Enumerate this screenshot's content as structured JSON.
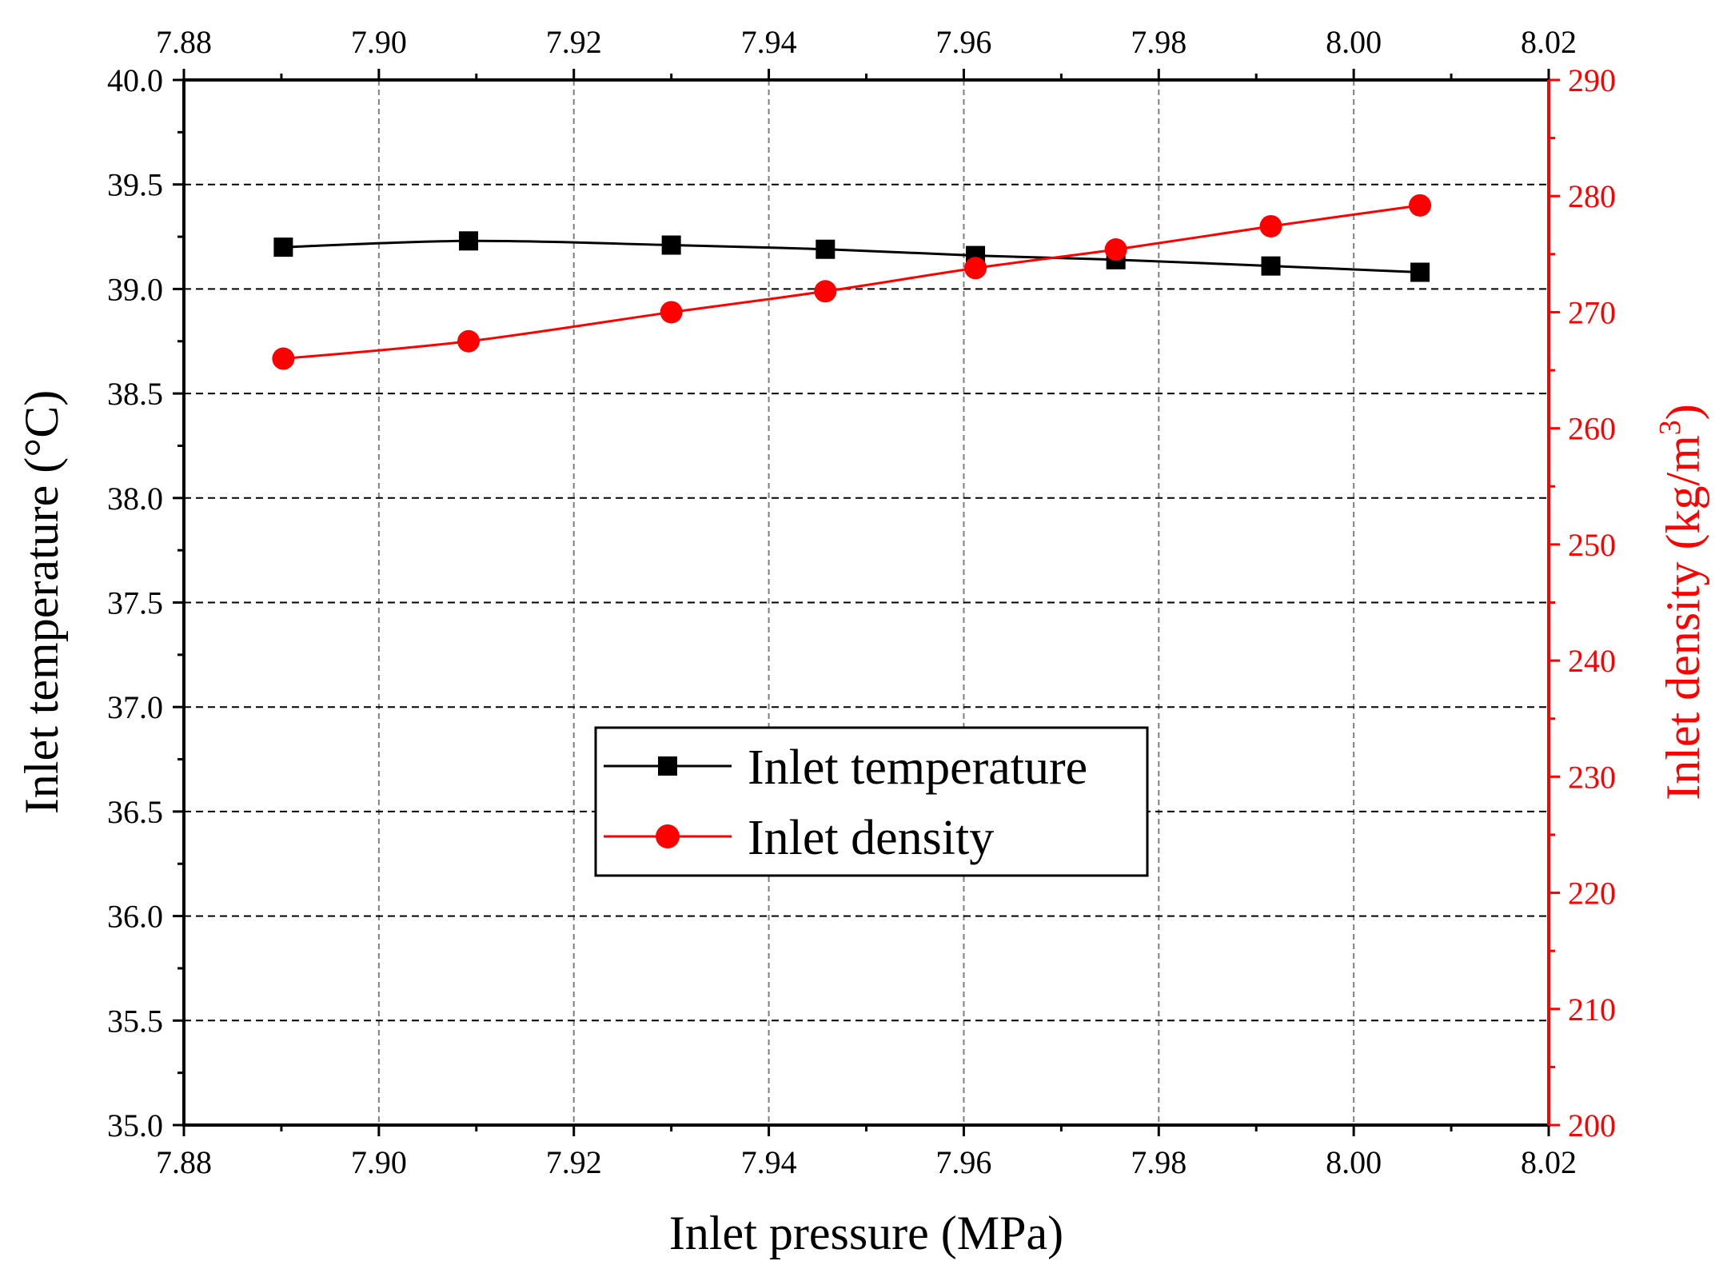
{
  "chart_data": {
    "type": "line",
    "title": "",
    "xlabel": "Inlet pressure (MPa)",
    "ylabel_left": "Inlet temperature (°C)",
    "ylabel_right_prefix": "Inlet density (kg/m",
    "ylabel_right_superscript": "3",
    "ylabel_right_suffix": ")",
    "xlim": [
      7.88,
      8.02
    ],
    "ylim_left": [
      35.0,
      40.0
    ],
    "ylim_right": [
      200,
      290
    ],
    "x_ticks": [
      "7.88",
      "7.90",
      "7.92",
      "7.94",
      "7.96",
      "7.98",
      "8.00",
      "8.02"
    ],
    "x_tick_values": [
      7.88,
      7.9,
      7.92,
      7.94,
      7.96,
      7.98,
      8.0,
      8.02
    ],
    "y_left_ticks": [
      "35.0",
      "35.5",
      "36.0",
      "36.5",
      "37.0",
      "37.5",
      "38.0",
      "38.5",
      "39.0",
      "39.5",
      "40.0"
    ],
    "y_left_tick_values": [
      35.0,
      35.5,
      36.0,
      36.5,
      37.0,
      37.5,
      38.0,
      38.5,
      39.0,
      39.5,
      40.0
    ],
    "y_right_ticks": [
      "200",
      "210",
      "220",
      "230",
      "240",
      "250",
      "260",
      "270",
      "280",
      "290"
    ],
    "y_right_tick_values": [
      200,
      210,
      220,
      230,
      240,
      250,
      260,
      270,
      280,
      290
    ],
    "grid": true,
    "legend_position": "center",
    "colors": {
      "temperature": "#000000",
      "density": "#ff0000",
      "grid": "#808080"
    },
    "series": [
      {
        "name": "Inlet temperature",
        "axis": "left",
        "marker": "square",
        "x": [
          7.8902,
          7.9092,
          7.93,
          7.9458,
          7.9612,
          7.9756,
          7.9915,
          8.0068
        ],
        "values": [
          39.2,
          39.23,
          39.21,
          39.19,
          39.16,
          39.14,
          39.11,
          39.08
        ]
      },
      {
        "name": "Inlet density",
        "axis": "right",
        "marker": "circle",
        "x": [
          7.8902,
          7.9092,
          7.93,
          7.9458,
          7.9612,
          7.9756,
          7.9915,
          8.0068
        ],
        "values": [
          266.0,
          267.5,
          270.0,
          271.8,
          273.8,
          275.4,
          277.4,
          279.2
        ]
      }
    ]
  }
}
